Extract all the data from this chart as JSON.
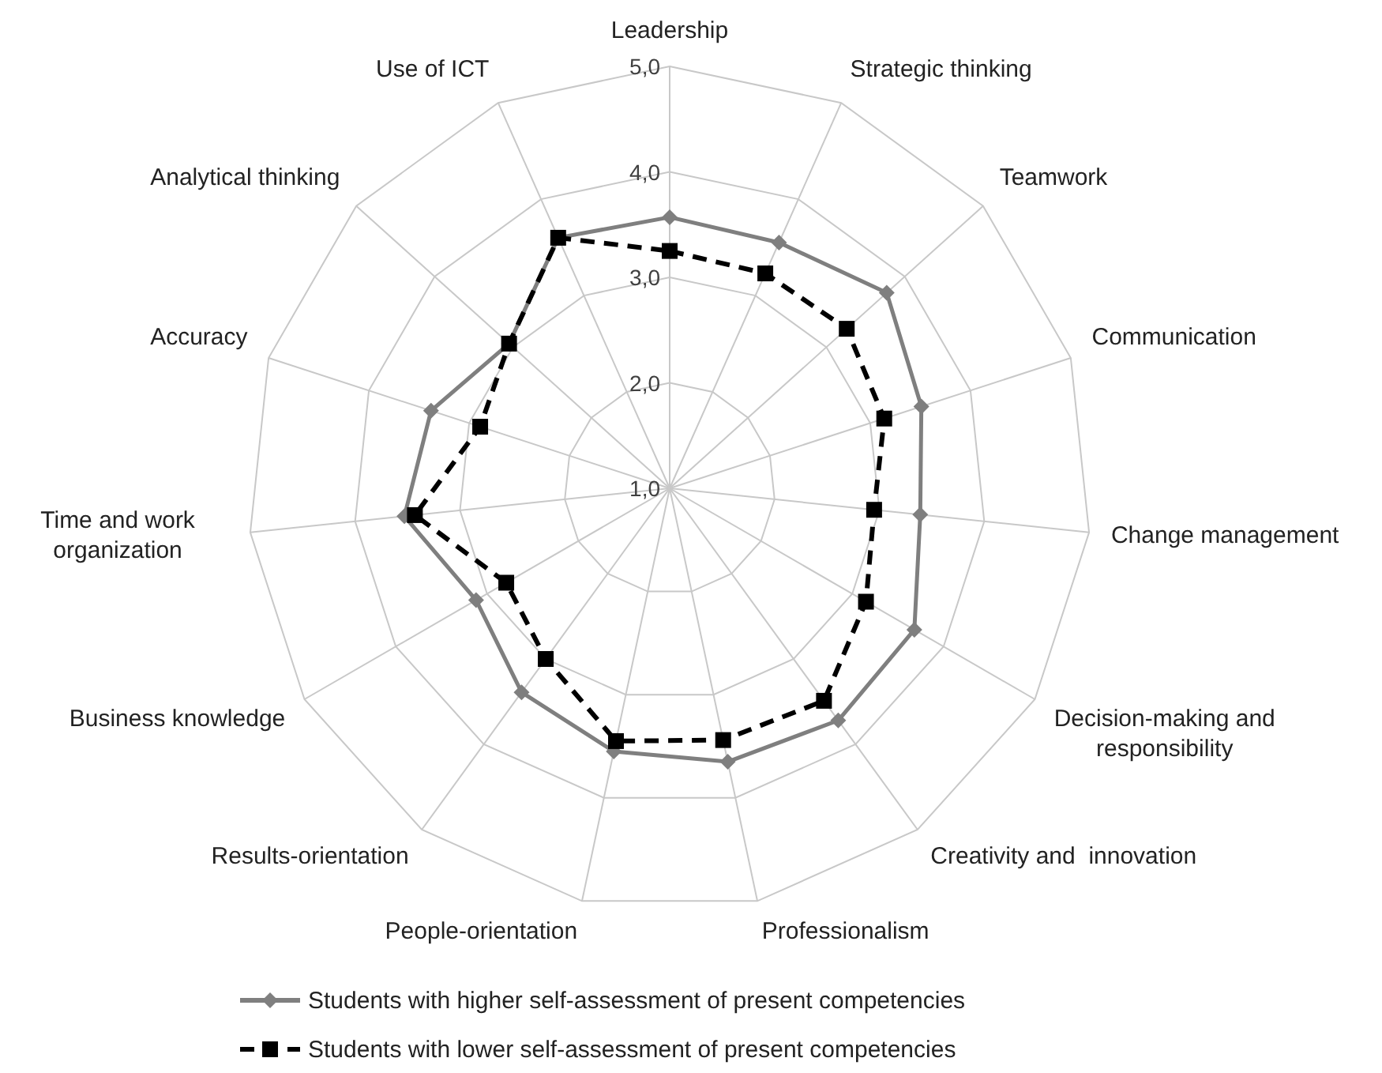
{
  "chart_data": {
    "type": "radar",
    "categories": [
      "Leadership",
      "Strategic thinking",
      "Teamwork",
      "Communication",
      "Change management",
      "Decision-making and\nresponsibility",
      "Creativity and  innovation",
      "Professionalism",
      "People-orientation",
      "Results-orientation",
      "Business knowledge",
      "Time and work\norganization",
      "Accuracy",
      "Analytical thinking",
      "Use of ICT"
    ],
    "ylim": [
      1,
      5
    ],
    "yticks": [
      {
        "value": 1,
        "label": "1,0"
      },
      {
        "value": 2,
        "label": "2,0"
      },
      {
        "value": 3,
        "label": "3,0"
      },
      {
        "value": 4,
        "label": "4,0"
      },
      {
        "value": 5,
        "label": "5,0"
      }
    ],
    "grid": true,
    "legend": "bottom",
    "series": [
      {
        "name": "Students with higher self-assessment of present competencies",
        "color": "#7f7f7f",
        "marker": "diamond",
        "line_style": "solid",
        "values": [
          3.57,
          3.55,
          3.77,
          3.51,
          3.39,
          3.68,
          3.72,
          3.65,
          3.55,
          3.39,
          3.12,
          3.53,
          3.38,
          3.05,
          3.6
        ]
      },
      {
        "name": "Students with lower self-assessment of present competencies",
        "color": "#000000",
        "marker": "square",
        "line_style": "dashed",
        "values": [
          3.25,
          3.23,
          3.26,
          3.14,
          2.95,
          3.15,
          3.49,
          3.44,
          3.45,
          3.0,
          2.79,
          3.43,
          2.89,
          3.05,
          3.6
        ]
      }
    ]
  }
}
